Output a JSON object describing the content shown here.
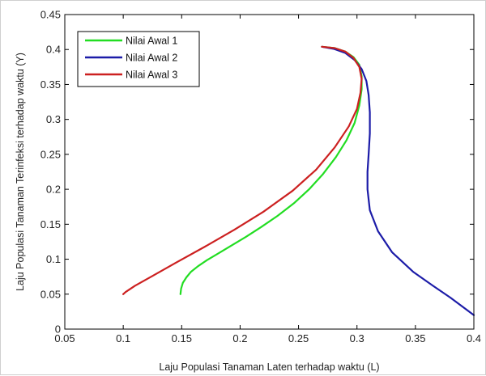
{
  "chart_data": {
    "type": "line",
    "title": "",
    "xlabel": "Laju Populasi Tanaman Laten terhadap waktu (L)",
    "ylabel": "Laju Populasi Tanaman Terinfeksi terhadap waktu (Y)",
    "xlim": [
      0.05,
      0.4
    ],
    "ylim": [
      0,
      0.45
    ],
    "xticks": [
      0.05,
      0.1,
      0.15,
      0.2,
      0.25,
      0.3,
      0.35,
      0.4
    ],
    "xtick_labels": [
      "0.05",
      "0.1",
      "0.15",
      "0.2",
      "0.25",
      "0.3",
      "0.35",
      "0.4"
    ],
    "yticks": [
      0,
      0.05,
      0.1,
      0.15,
      0.2,
      0.25,
      0.3,
      0.35,
      0.4,
      0.45
    ],
    "ytick_labels": [
      "0",
      "0.05",
      "0.1",
      "0.15",
      "0.2",
      "0.25",
      "0.3",
      "0.35",
      "0.4",
      "0.45"
    ],
    "grid": false,
    "legend_position": "top-left",
    "series": [
      {
        "name": "Nilai Awal 1",
        "color": "#22dd22",
        "x": [
          0.149,
          0.1495,
          0.151,
          0.154,
          0.158,
          0.164,
          0.172,
          0.182,
          0.193,
          0.205,
          0.218,
          0.232,
          0.246,
          0.259,
          0.271,
          0.282,
          0.291,
          0.298,
          0.302,
          0.304,
          0.304,
          0.302,
          0.297,
          0.29,
          0.281,
          0.27
        ],
        "y": [
          0.05,
          0.058,
          0.066,
          0.074,
          0.082,
          0.09,
          0.099,
          0.109,
          0.12,
          0.132,
          0.146,
          0.162,
          0.18,
          0.2,
          0.222,
          0.246,
          0.27,
          0.295,
          0.32,
          0.343,
          0.362,
          0.378,
          0.389,
          0.397,
          0.402,
          0.404
        ]
      },
      {
        "name": "Nilai Awal 2",
        "color": "#1c1ca8",
        "x": [
          0.4,
          0.392,
          0.38,
          0.365,
          0.348,
          0.33,
          0.318,
          0.311,
          0.309,
          0.309,
          0.31,
          0.311,
          0.311,
          0.31,
          0.308,
          0.304,
          0.298,
          0.29,
          0.28,
          0.27
        ],
        "y": [
          0.02,
          0.03,
          0.045,
          0.062,
          0.082,
          0.11,
          0.14,
          0.17,
          0.2,
          0.225,
          0.25,
          0.28,
          0.31,
          0.335,
          0.355,
          0.372,
          0.385,
          0.395,
          0.401,
          0.404
        ]
      },
      {
        "name": "Nilai Awal 3",
        "color": "#cc2020",
        "x": [
          0.1,
          0.102,
          0.11,
          0.125,
          0.145,
          0.17,
          0.195,
          0.22,
          0.245,
          0.265,
          0.281,
          0.293,
          0.3,
          0.303,
          0.304,
          0.302,
          0.297,
          0.29,
          0.281,
          0.27
        ],
        "y": [
          0.05,
          0.053,
          0.062,
          0.076,
          0.095,
          0.118,
          0.142,
          0.168,
          0.198,
          0.228,
          0.26,
          0.29,
          0.315,
          0.338,
          0.358,
          0.375,
          0.388,
          0.397,
          0.402,
          0.404
        ]
      }
    ]
  }
}
